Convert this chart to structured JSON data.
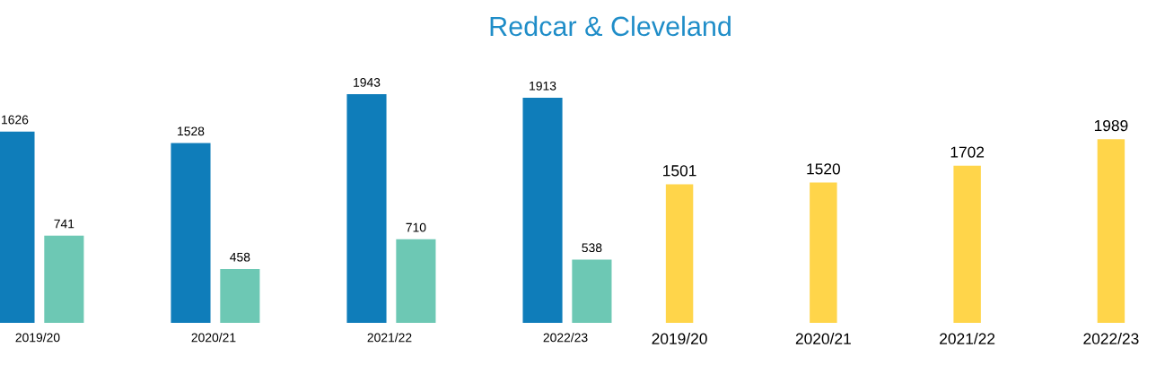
{
  "chart_data": [
    {
      "type": "bar",
      "title": "Redcar & Cleveland",
      "categories": [
        "2019/20",
        "2020/21",
        "2021/22",
        "2022/23"
      ],
      "series": [
        {
          "color": "#0f7dba",
          "values": [
            1626,
            1528,
            1943,
            1913
          ]
        },
        {
          "color": "#6dc8b4",
          "values": [
            741,
            458,
            710,
            538
          ]
        }
      ],
      "data_labels": true,
      "grid": false,
      "legend": false
    },
    {
      "type": "bar",
      "categories": [
        "2019/20",
        "2020/21",
        "2021/22",
        "2022/23"
      ],
      "series": [
        {
          "color": "#ffd54a",
          "values": [
            1501,
            1520,
            1702,
            1989
          ]
        }
      ],
      "data_labels": true,
      "grid": false,
      "legend": false
    }
  ]
}
